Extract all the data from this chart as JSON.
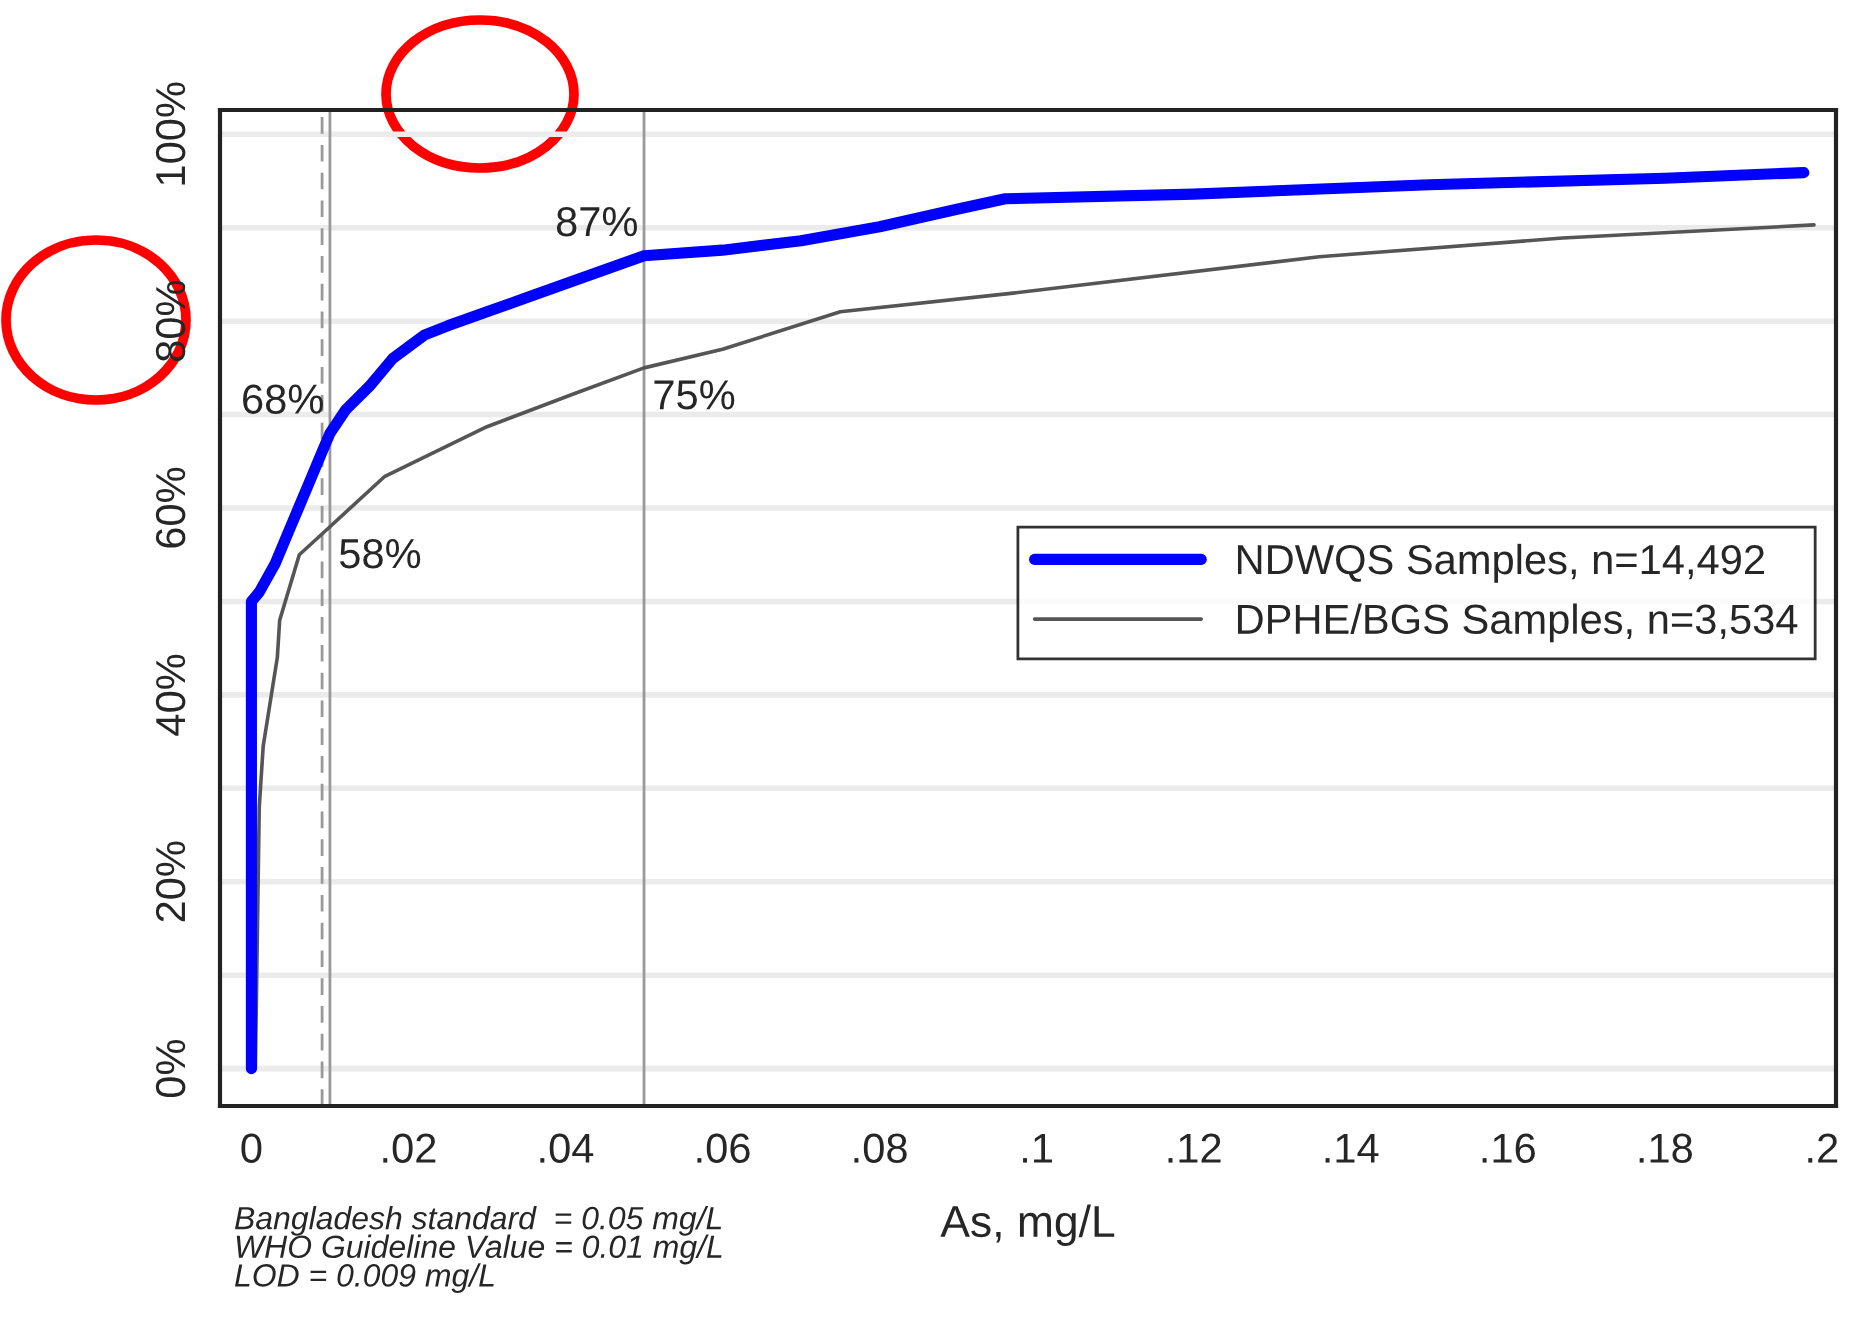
{
  "chart_data": {
    "type": "line",
    "xlabel": "As, mg/L",
    "xlim": [
      -0.004,
      0.2018
    ],
    "xticks": [
      {
        "value": 0,
        "label": "0"
      },
      {
        "value": 0.02,
        "label": ".02"
      },
      {
        "value": 0.04,
        "label": ".04"
      },
      {
        "value": 0.06,
        "label": ".06"
      },
      {
        "value": 0.08,
        "label": ".08"
      },
      {
        "value": 0.1,
        "label": ".1"
      },
      {
        "value": 0.12,
        "label": ".12"
      },
      {
        "value": 0.14,
        "label": ".14"
      },
      {
        "value": 0.16,
        "label": ".16"
      },
      {
        "value": 0.18,
        "label": ".18"
      },
      {
        "value": 0.2,
        "label": ".2"
      }
    ],
    "ylim": [
      -4,
      102.6
    ],
    "yticks": [
      {
        "value": 0,
        "label": "0%"
      },
      {
        "value": 10,
        "label": null
      },
      {
        "value": 20,
        "label": "20%"
      },
      {
        "value": 30,
        "label": null
      },
      {
        "value": 40,
        "label": "40%"
      },
      {
        "value": 50,
        "label": null
      },
      {
        "value": 60,
        "label": "60%"
      },
      {
        "value": 70,
        "label": null
      },
      {
        "value": 80,
        "label": "80%"
      },
      {
        "value": 90,
        "label": null
      },
      {
        "value": 100,
        "label": "100%"
      }
    ],
    "grid": "y",
    "legend": "center right",
    "series": [
      {
        "name": "NDWQS Samples, n=14,492",
        "color": "#0000ff",
        "x": [
          0,
          0,
          0.001,
          0.002,
          0.003,
          0.004,
          0.005,
          0.006,
          0.007,
          0.008,
          0.009,
          0.01,
          0.012,
          0.015,
          0.018,
          0.022,
          0.025,
          0.03,
          0.035,
          0.04,
          0.045,
          0.05,
          0.06,
          0.07,
          0.08,
          0.09,
          0.096,
          0.12,
          0.15,
          0.18,
          0.1977
        ],
        "values": [
          0,
          50,
          51,
          52.5,
          54,
          56,
          58,
          60,
          62,
          64,
          66,
          68,
          70.5,
          73,
          76,
          78.5,
          79.5,
          81,
          82.5,
          84,
          85.5,
          87,
          87.6,
          88.6,
          90.1,
          92,
          93.1,
          93.6,
          94.6,
          95.3,
          95.9
        ],
        "value_labels": [
          null,
          null,
          null,
          null,
          null,
          null,
          null,
          null,
          null,
          null,
          null,
          "68%",
          null,
          null,
          null,
          null,
          null,
          null,
          null,
          null,
          null,
          "87%",
          null,
          null,
          null,
          null,
          null,
          null,
          null,
          null,
          null
        ]
      },
      {
        "name": "DPHE/BGS Samples, n=3,534",
        "color": "#555555",
        "x": [
          0.0005,
          0.001,
          0.0015,
          0.0033,
          0.0036,
          0.0061,
          0.01,
          0.017,
          0.03,
          0.041,
          0.05,
          0.06,
          0.075,
          0.097,
          0.136,
          0.167,
          0.199
        ],
        "values": [
          0,
          28,
          34.5,
          44,
          48,
          55,
          58,
          63.4,
          68.7,
          72.2,
          75,
          77,
          81,
          83,
          86.9,
          88.9,
          90.3
        ],
        "value_labels": [
          null,
          null,
          null,
          null,
          null,
          null,
          "58%",
          null,
          null,
          null,
          "75%",
          null,
          null,
          null,
          null,
          null,
          null
        ]
      }
    ],
    "ref_lines": [
      {
        "axis": "x",
        "value": 0.009,
        "line_style": "dashed",
        "color": "#999999"
      },
      {
        "axis": "x",
        "value": 0.01,
        "line_style": "solid",
        "color": "#999999"
      },
      {
        "axis": "x",
        "value": 0.05,
        "line_style": "solid",
        "color": "#999999"
      }
    ],
    "annotations": [
      "Bangladesh standard  = 0.05 mg/L\nWHO Guideline Value = 0.01 mg/L\nLOD = 0.009 mg/L"
    ]
  }
}
